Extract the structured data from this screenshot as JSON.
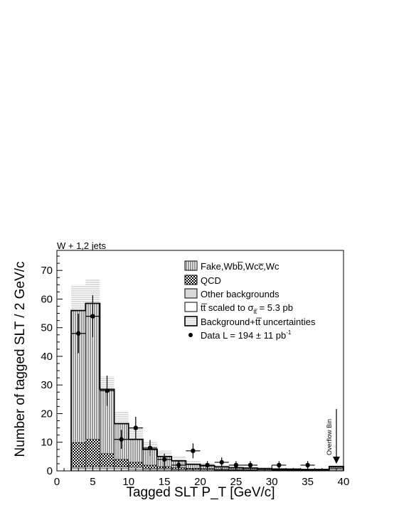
{
  "chart_data": {
    "type": "bar",
    "title": "W + 1,2 jets",
    "xlabel": "Tagged SLT  P_T [GeV/c]",
    "ylabel": "Number of tagged SLT / 2 GeV/c",
    "xlim": [
      0,
      40
    ],
    "ylim": [
      0,
      77
    ],
    "x_ticks": [
      0,
      5,
      10,
      15,
      20,
      25,
      30,
      35,
      40
    ],
    "y_ticks": [
      0,
      10,
      20,
      30,
      40,
      50,
      60,
      70
    ],
    "grid": false,
    "legend_position": "top-right",
    "annotation": "Overflow Bin",
    "bin_edges": [
      2,
      4,
      6,
      8,
      10,
      12,
      14,
      16,
      18,
      20,
      22,
      24,
      26,
      28,
      30,
      32,
      34,
      36,
      38,
      40
    ],
    "stack_series": [
      {
        "name": "Other backgrounds",
        "pattern": "gray",
        "values": [
          1.0,
          1.0,
          1.0,
          0.8,
          0.7,
          0.5,
          0.5,
          0.4,
          0.3,
          0.3,
          0.2,
          0.2,
          0.2,
          0.1,
          0.1,
          0.1,
          0.1,
          0.1,
          0.4
        ]
      },
      {
        "name": "ttbar scaled",
        "pattern": "white",
        "values": [
          0.4,
          0.5,
          0.5,
          0.5,
          0.5,
          0.4,
          0.4,
          0.3,
          0.3,
          0.3,
          0.2,
          0.2,
          0.2,
          0.2,
          0.1,
          0.1,
          0.1,
          0.1,
          0.4
        ]
      },
      {
        "name": "QCD",
        "pattern": "checker",
        "values": [
          8.5,
          9.5,
          4.5,
          2.7,
          1.8,
          1.1,
          0.6,
          0.4,
          0.3,
          0.2,
          0.2,
          0.1,
          0.1,
          0.1,
          0.1,
          0.1,
          0.1,
          0.1,
          0.2
        ]
      },
      {
        "name": "Fake,Wbb,Wcc,Wc",
        "pattern": "vlines",
        "values": [
          46.1,
          47.5,
          22.5,
          12.5,
          8.0,
          5.5,
          3.5,
          2.4,
          1.4,
          1.0,
          0.8,
          0.6,
          0.5,
          0.4,
          0.3,
          0.3,
          0.2,
          0.2,
          0.5
        ]
      }
    ],
    "totals": [
      56,
      58.5,
      28.5,
      16.5,
      11,
      7.5,
      5,
      3.5,
      2.3,
      1.8,
      1.4,
      1.1,
      1.0,
      0.8,
      0.6,
      0.6,
      0.5,
      0.5,
      1.5
    ],
    "uncertainty_band": {
      "name": "Background+ttbar uncertainties",
      "up": [
        65,
        67,
        33,
        21,
        14.5,
        10,
        7,
        5,
        3.5,
        2.6,
        2.0,
        1.6,
        1.4,
        1.2,
        1.0,
        0.9,
        0.8,
        0.8,
        2.2
      ],
      "down": [
        47,
        50,
        24,
        12,
        7.5,
        5,
        3,
        2,
        1.2,
        1.0,
        0.8,
        0.6,
        0.6,
        0.4,
        0.3,
        0.3,
        0.2,
        0.2,
        0.8
      ]
    },
    "data_points": {
      "name": "Data",
      "x": [
        3,
        5,
        7,
        9,
        11,
        13,
        15,
        17,
        19,
        21,
        23,
        25,
        27,
        31,
        35
      ],
      "y": [
        48,
        54,
        28,
        11,
        15,
        8,
        4,
        2,
        7,
        2,
        3,
        2,
        2,
        2,
        2
      ],
      "err": [
        6.9,
        7.3,
        5.3,
        3.3,
        3.9,
        2.8,
        2,
        1.4,
        2.6,
        1.4,
        1.7,
        1.4,
        1.4,
        1.4,
        1.4
      ],
      "xerr": 1
    },
    "legend": [
      {
        "key": "fake",
        "symbol": "vlines",
        "text": "Fake,Wbb̅,Wcc̅,Wc"
      },
      {
        "key": "qcd",
        "symbol": "checker",
        "text": "QCD"
      },
      {
        "key": "other",
        "symbol": "gray",
        "text": "Other backgrounds"
      },
      {
        "key": "ttbar",
        "symbol": "white",
        "text_main": "tt̅ scaled to σ",
        "text_sub": "tt̅",
        "text_tail": " = 5.3 pb"
      },
      {
        "key": "unc",
        "symbol": "hlines",
        "text": "Background+tt̅ uncertainties"
      },
      {
        "key": "data",
        "symbol": "dot",
        "text_main": "Data L = 194 ± 11 pb",
        "text_sup": "-1"
      }
    ]
  }
}
